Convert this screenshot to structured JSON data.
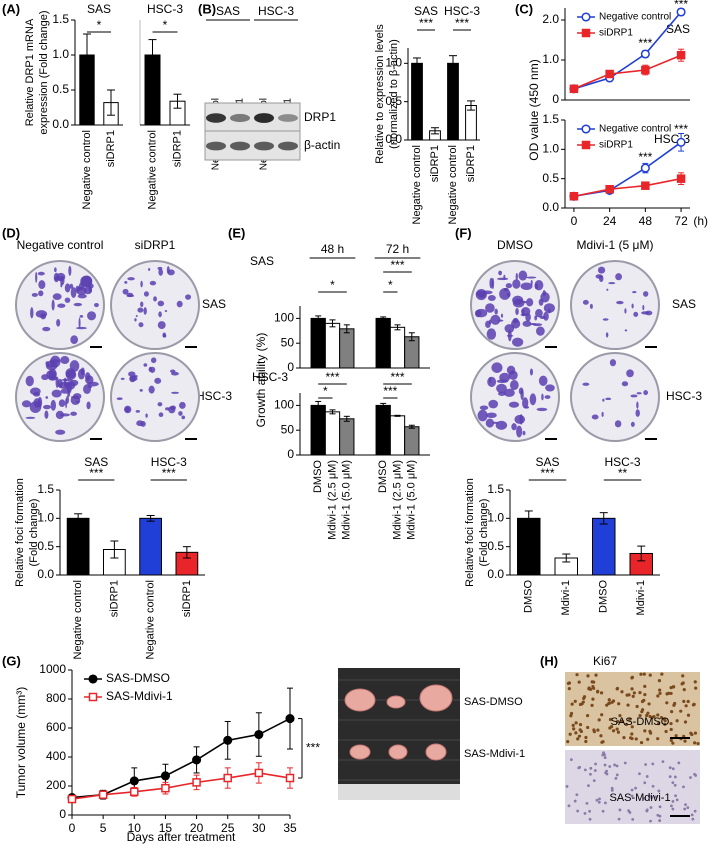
{
  "panel_labels": [
    "(A)",
    "(B)",
    "(C)",
    "(D)",
    "(E)",
    "(F)",
    "(G)",
    "(H)"
  ],
  "blot": {
    "groups": [
      "SAS",
      "HSC-3"
    ],
    "lanes": [
      "Negative control",
      "siDRP1",
      "Negative control",
      "siDRP1"
    ],
    "bands": [
      "DRP1",
      "β-actin"
    ]
  },
  "colony_D": {
    "columns": [
      "Negative control",
      "siDRP1"
    ],
    "rows": [
      "SAS",
      "HSC-3"
    ]
  },
  "colony_F": {
    "columns": [
      "DMSO",
      "Mdivi-1 (5 μM)"
    ],
    "rows": [
      "SAS",
      "HSC-3"
    ]
  },
  "tumor_photo": {
    "rows": [
      "SAS-DMSO",
      "SAS-Mdivi-1"
    ]
  },
  "ihc": {
    "title": "Ki67",
    "rows": [
      "SAS-DMSO",
      "SAS-Mdivi-1"
    ]
  },
  "chart_data": [
    {
      "type": "bar",
      "subtitle": "SAS",
      "ylabel": [
        "Relative DRP1 mRNA",
        "expression (Fold change)"
      ],
      "categories": [
        "Negative control",
        "siDRP1"
      ],
      "values": [
        1.0,
        0.32
      ],
      "errors": [
        0.3,
        0.18
      ],
      "colors": [
        "#000000",
        "#ffffff"
      ],
      "ylim": [
        0,
        1.5
      ],
      "yticks": [
        {
          "value": 0,
          "label": "0.0"
        },
        0.5,
        {
          "value": 1,
          "label": "1.0"
        },
        1.5
      ],
      "significance": [
        "*"
      ]
    },
    {
      "type": "bar",
      "subtitle": "HSC-3",
      "categories": [
        "Negative control",
        "siDRP1"
      ],
      "values": [
        1.0,
        0.34
      ],
      "errors": [
        0.22,
        0.1
      ],
      "colors": [
        "#000000",
        "#ffffff"
      ],
      "ylim": [
        0,
        1.5
      ],
      "significance": [
        "*"
      ]
    },
    {
      "type": "bar",
      "ylabel": [
        "Relative to  expression levels",
        "(normalized to β-actin)"
      ],
      "groups": [
        "SAS",
        "HSC-3"
      ],
      "categories": [
        "Negative control",
        "siDRP1",
        "Negative control",
        "siDRP1"
      ],
      "values": [
        1.0,
        0.12,
        1.0,
        0.45
      ],
      "errors": [
        0.07,
        0.04,
        0.1,
        0.06
      ],
      "colors": [
        "#000000",
        "#ffffff",
        "#000000",
        "#ffffff"
      ],
      "ylim": [
        0,
        1.2
      ],
      "yticks": [
        {
          "value": 0,
          "label": "0.0"
        },
        0.5,
        {
          "value": 1,
          "label": "1.0"
        }
      ],
      "significance": [
        "***",
        "***"
      ]
    },
    {
      "type": "line",
      "subtitle": "SAS",
      "ylabel": "OD value (450 nm)",
      "x": [
        0,
        24,
        48,
        72
      ],
      "xlim": [
        -6,
        78
      ],
      "ylim": [
        0,
        2.3
      ],
      "yticks": [
        0,
        {
          "value": 1,
          "label": "1.0"
        },
        {
          "value": 2,
          "label": "2.0"
        }
      ],
      "legend": "upper left",
      "series": [
        {
          "name": "Negative control",
          "color": "#1f3fd6",
          "marker": "circle-open",
          "values": [
            0.28,
            0.55,
            1.15,
            2.2
          ],
          "errors": [
            0.02,
            0.05,
            0.08,
            0.08
          ]
        },
        {
          "name": "siDRP1",
          "color": "#e8262a",
          "marker": "square",
          "values": [
            0.28,
            0.65,
            0.75,
            1.12
          ],
          "errors": [
            0.02,
            0.06,
            0.12,
            0.15
          ]
        }
      ],
      "significance": [
        "***",
        "***"
      ]
    },
    {
      "type": "line",
      "subtitle": "HSC-3",
      "x": [
        0,
        24,
        48,
        72
      ],
      "xlim": [
        -6,
        78
      ],
      "xticks": [
        0,
        24,
        48,
        72
      ],
      "xlabel": "(h)",
      "ylim": [
        0,
        1.5
      ],
      "yticks": [
        {
          "value": 0,
          "label": "0.0"
        },
        0.5,
        {
          "value": 1,
          "label": "1.0"
        },
        1.5
      ],
      "legend": "upper left",
      "series": [
        {
          "name": "Negative control",
          "color": "#1f3fd6",
          "marker": "circle-open",
          "values": [
            0.2,
            0.3,
            0.68,
            1.12
          ],
          "errors": [
            0.02,
            0.05,
            0.08,
            0.15
          ]
        },
        {
          "name": "siDRP1",
          "color": "#e8262a",
          "marker": "square",
          "values": [
            0.2,
            0.32,
            0.38,
            0.5
          ],
          "errors": [
            0.02,
            0.05,
            0.05,
            0.1
          ]
        }
      ],
      "significance": [
        "***",
        "***"
      ]
    },
    {
      "type": "bar",
      "ylabel": [
        "Relative foci formation",
        "(Fold change)"
      ],
      "groups": [
        "SAS",
        "HSC-3"
      ],
      "categories": [
        "Negative control",
        "siDRP1",
        "Negative control",
        "siDRP1"
      ],
      "values": [
        1.0,
        0.45,
        1.0,
        0.4
      ],
      "errors": [
        0.08,
        0.15,
        0.05,
        0.1
      ],
      "colors": [
        "#000000",
        "#ffffff",
        "#1f3fd6",
        "#e8262a"
      ],
      "ylim": [
        0,
        1.5
      ],
      "yticks": [
        {
          "value": 0,
          "label": "0.0"
        },
        0.5,
        {
          "value": 1,
          "label": "1.0"
        },
        1.5
      ],
      "significance": [
        "***",
        "***"
      ]
    },
    {
      "type": "bar",
      "subtitle": "SAS",
      "ylabel": "Growth ability (%)",
      "categories": [
        "48 h",
        "72 h"
      ],
      "ylim": [
        0,
        125
      ],
      "yticks": [
        0,
        50,
        100
      ],
      "series": [
        {
          "color": "#000000",
          "values": [
            100,
            100
          ],
          "errors": [
            5,
            3
          ]
        },
        {
          "color": "#ffffff",
          "values": [
            90,
            82
          ],
          "errors": [
            7,
            5
          ]
        },
        {
          "color": "#808080",
          "values": [
            79,
            63
          ],
          "errors": [
            8,
            8
          ]
        }
      ],
      "significance": [
        "*",
        "***",
        "*"
      ]
    },
    {
      "type": "bar",
      "subtitle": "HSC-3",
      "ylim": [
        0,
        125
      ],
      "yticks": [
        0,
        50,
        100
      ],
      "series": [
        {
          "name": "DMSO",
          "color": "#000000",
          "values": [
            100,
            100
          ],
          "errors": [
            8,
            4
          ]
        },
        {
          "name": "Mdivi-1 (2.5 μM)",
          "color": "#ffffff",
          "values": [
            87,
            79
          ],
          "errors": [
            4,
            1
          ]
        },
        {
          "name": "Mdivi-1 (5.0 μM)",
          "color": "#808080",
          "values": [
            73,
            57
          ],
          "errors": [
            5,
            3
          ]
        }
      ],
      "significance": [
        "***",
        "*",
        "***",
        "***"
      ]
    },
    {
      "type": "bar",
      "ylabel": [
        "Relative foci formation",
        "(Fold change)"
      ],
      "groups": [
        "SAS",
        "HSC-3"
      ],
      "categories": [
        "DMSO",
        "Mdivi-1",
        "DMSO",
        "Mdivi-1"
      ],
      "values": [
        1.0,
        0.3,
        1.0,
        0.38
      ],
      "errors": [
        0.13,
        0.07,
        0.1,
        0.13
      ],
      "colors": [
        "#000000",
        "#ffffff",
        "#1f3fd6",
        "#e8262a"
      ],
      "ylim": [
        0,
        1.5
      ],
      "yticks": [
        {
          "value": 0,
          "label": "0.0"
        },
        0.5,
        {
          "value": 1,
          "label": "1.0"
        },
        1.5
      ],
      "significance": [
        "***",
        "**"
      ]
    },
    {
      "type": "line",
      "ylabel": "Tumor volume (mm³)",
      "xlabel": "Days after treatment",
      "x": [
        0,
        5,
        10,
        15,
        20,
        25,
        30,
        35
      ],
      "xlim": [
        0,
        35
      ],
      "xticks": [
        0,
        5,
        10,
        15,
        20,
        25,
        30,
        35
      ],
      "ylim": [
        0,
        1000
      ],
      "yticks": [
        0,
        200,
        400,
        600,
        800,
        1000
      ],
      "legend": "upper left",
      "series": [
        {
          "name": "SAS-DMSO",
          "color": "#000000",
          "marker": "circle",
          "values": [
            120,
            140,
            235,
            270,
            380,
            515,
            555,
            665
          ],
          "errors": [
            20,
            30,
            90,
            80,
            90,
            130,
            150,
            210
          ]
        },
        {
          "name": "SAS-Mdivi-1",
          "color": "#e8262a",
          "marker": "square-open",
          "values": [
            110,
            140,
            160,
            185,
            225,
            255,
            290,
            255
          ],
          "errors": [
            20,
            20,
            30,
            40,
            50,
            70,
            70,
            70
          ]
        }
      ],
      "significance": [
        "***"
      ]
    }
  ]
}
